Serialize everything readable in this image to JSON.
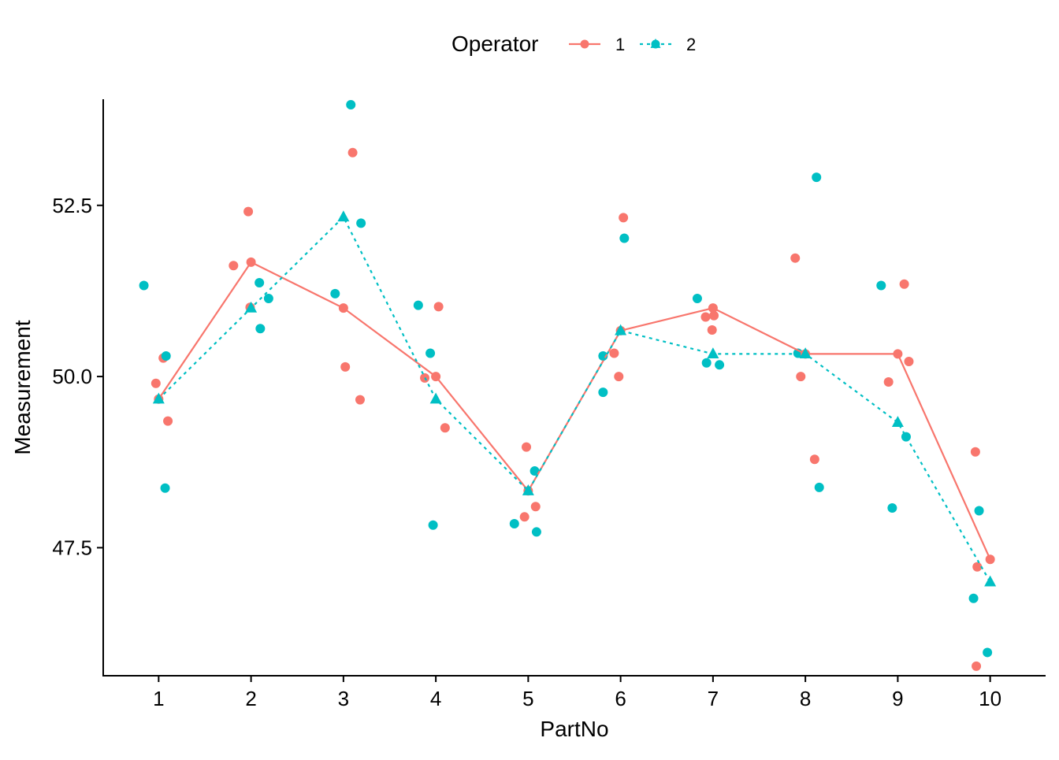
{
  "chart_data": {
    "type": "line",
    "xlabel": "PartNo",
    "ylabel": "Measurement",
    "x": [
      1,
      2,
      3,
      4,
      5,
      6,
      7,
      8,
      9,
      10
    ],
    "xlim": [
      0.4,
      10.6
    ],
    "ylim": [
      45.63,
      54.05
    ],
    "yticks": [
      47.5,
      50.0,
      52.5
    ],
    "ytick_labels": [
      "47.5",
      "50.0",
      "52.5"
    ],
    "xtick_labels": [
      "1",
      "2",
      "3",
      "4",
      "5",
      "6",
      "7",
      "8",
      "9",
      "10"
    ],
    "grid": false,
    "legend": {
      "title": "Operator",
      "position": "top"
    },
    "series": [
      {
        "name": "1",
        "color": "#F8766D",
        "line_style": "solid",
        "marker": "circle",
        "mean_values": [
          49.67,
          51.67,
          51.0,
          50.0,
          48.33,
          50.67,
          51.0,
          50.33,
          50.33,
          47.33
        ],
        "points": [
          {
            "x": 0.97,
            "y": 49.9
          },
          {
            "x": 1.05,
            "y": 50.27
          },
          {
            "x": 1.1,
            "y": 49.35
          },
          {
            "x": 1.81,
            "y": 51.62
          },
          {
            "x": 1.97,
            "y": 52.41
          },
          {
            "x": 1.99,
            "y": 51.01
          },
          {
            "x": 3.02,
            "y": 50.14
          },
          {
            "x": 3.1,
            "y": 53.27
          },
          {
            "x": 3.18,
            "y": 49.66
          },
          {
            "x": 3.88,
            "y": 49.98
          },
          {
            "x": 4.03,
            "y": 51.02
          },
          {
            "x": 4.1,
            "y": 49.25
          },
          {
            "x": 4.96,
            "y": 47.95
          },
          {
            "x": 4.98,
            "y": 48.97
          },
          {
            "x": 5.08,
            "y": 48.1
          },
          {
            "x": 5.93,
            "y": 50.34
          },
          {
            "x": 5.98,
            "y": 50.0
          },
          {
            "x": 6.03,
            "y": 52.32
          },
          {
            "x": 6.92,
            "y": 50.87
          },
          {
            "x": 6.99,
            "y": 50.68
          },
          {
            "x": 7.01,
            "y": 50.89
          },
          {
            "x": 7.89,
            "y": 51.73
          },
          {
            "x": 7.95,
            "y": 50.0
          },
          {
            "x": 8.1,
            "y": 48.79
          },
          {
            "x": 8.9,
            "y": 49.92
          },
          {
            "x": 9.07,
            "y": 51.35
          },
          {
            "x": 9.12,
            "y": 50.22
          },
          {
            "x": 9.84,
            "y": 48.9
          },
          {
            "x": 9.86,
            "y": 47.22
          },
          {
            "x": 9.85,
            "y": 45.77
          }
        ]
      },
      {
        "name": "2",
        "color": "#00BFC4",
        "line_style": "dotted",
        "marker": "circle",
        "mean_marker": "triangle",
        "mean_values": [
          49.67,
          51.0,
          52.33,
          49.67,
          48.33,
          50.67,
          50.33,
          50.33,
          49.33,
          47.0
        ],
        "points": [
          {
            "x": 0.84,
            "y": 51.33
          },
          {
            "x": 1.08,
            "y": 50.3
          },
          {
            "x": 1.07,
            "y": 48.37
          },
          {
            "x": 2.09,
            "y": 51.37
          },
          {
            "x": 2.1,
            "y": 50.7
          },
          {
            "x": 2.19,
            "y": 51.14
          },
          {
            "x": 2.91,
            "y": 51.21
          },
          {
            "x": 3.08,
            "y": 53.97
          },
          {
            "x": 3.19,
            "y": 52.24
          },
          {
            "x": 3.81,
            "y": 51.04
          },
          {
            "x": 3.94,
            "y": 50.34
          },
          {
            "x": 3.97,
            "y": 47.83
          },
          {
            "x": 4.85,
            "y": 47.85
          },
          {
            "x": 5.07,
            "y": 48.62
          },
          {
            "x": 5.09,
            "y": 47.73
          },
          {
            "x": 5.81,
            "y": 50.3
          },
          {
            "x": 5.81,
            "y": 49.77
          },
          {
            "x": 6.04,
            "y": 52.02
          },
          {
            "x": 6.83,
            "y": 51.14
          },
          {
            "x": 6.93,
            "y": 50.2
          },
          {
            "x": 7.07,
            "y": 50.17
          },
          {
            "x": 7.92,
            "y": 50.34
          },
          {
            "x": 8.12,
            "y": 52.91
          },
          {
            "x": 8.15,
            "y": 48.38
          },
          {
            "x": 8.82,
            "y": 51.33
          },
          {
            "x": 8.94,
            "y": 48.08
          },
          {
            "x": 9.09,
            "y": 49.12
          },
          {
            "x": 9.82,
            "y": 46.76
          },
          {
            "x": 9.88,
            "y": 48.04
          },
          {
            "x": 9.97,
            "y": 45.97
          }
        ]
      }
    ]
  }
}
